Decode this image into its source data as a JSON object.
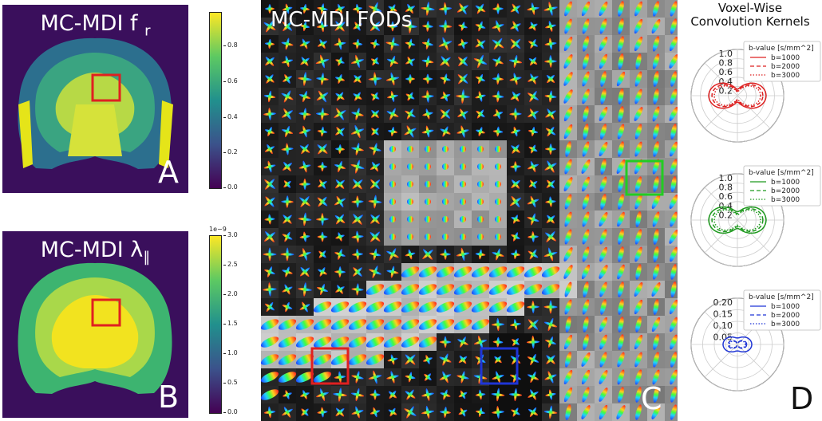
{
  "panel_a": {
    "title_main": "MC-MDI f",
    "title_sub": "r",
    "letter": "A",
    "colorbar_ticks": [
      "0.8",
      "0.6",
      "0.4",
      "0.2",
      "0.0"
    ]
  },
  "panel_b": {
    "title_main": "MC-MDI λ",
    "title_sub": "∥",
    "letter": "B",
    "colorbar_exponent": "1e−9",
    "colorbar_ticks": [
      "3.0",
      "2.5",
      "2.0",
      "1.5",
      "1.0",
      "0.5",
      "0.0"
    ]
  },
  "panel_c": {
    "title": "MC-MDI FODs",
    "letter": "C"
  },
  "panel_d": {
    "title_line1": "Voxel-Wise",
    "title_line2": "Convolution Kernels",
    "letter": "D"
  },
  "colors": {
    "red": "#dd2020",
    "green": "#1f9a1f",
    "blue": "#1f35d6",
    "viridis_low": "#440154",
    "viridis_high": "#fde725"
  },
  "chart_data": [
    {
      "type": "polar",
      "color": "#dd2020",
      "radial_ticks": [
        "1.0",
        "0.8",
        "0.6",
        "0.4",
        "0.2"
      ],
      "rmax": 1.0,
      "legend_title": "b-value [s/mm^2]",
      "series": [
        {
          "name": "b=1000",
          "style": "solid",
          "along_axis": 0.62,
          "perp_axis": 0.14
        },
        {
          "name": "b=2000",
          "style": "dashed",
          "along_axis": 0.55,
          "perp_axis": 0.1
        },
        {
          "name": "b=3000",
          "style": "dotted",
          "along_axis": 0.5,
          "perp_axis": 0.08
        }
      ]
    },
    {
      "type": "polar",
      "color": "#1f9a1f",
      "radial_ticks": [
        "1.0",
        "0.8",
        "0.6",
        "0.4",
        "0.2"
      ],
      "rmax": 1.0,
      "legend_title": "b-value [s/mm^2]",
      "series": [
        {
          "name": "b=1000",
          "style": "solid",
          "along_axis": 0.62,
          "perp_axis": 0.18
        },
        {
          "name": "b=2000",
          "style": "dashed",
          "along_axis": 0.55,
          "perp_axis": 0.14
        },
        {
          "name": "b=3000",
          "style": "dotted",
          "along_axis": 0.5,
          "perp_axis": 0.11
        }
      ]
    },
    {
      "type": "polar",
      "color": "#1f35d6",
      "radial_ticks": [
        "0.20",
        "0.15",
        "0.10",
        "0.05"
      ],
      "rmax": 0.2,
      "legend_title": "b-value [s/mm^2]",
      "series": [
        {
          "name": "b=1000",
          "style": "solid",
          "along_axis": 0.062,
          "perp_axis": 0.028
        },
        {
          "name": "b=2000",
          "style": "dashed",
          "along_axis": 0.04,
          "perp_axis": 0.006
        },
        {
          "name": "b=3000",
          "style": "dotted",
          "along_axis": 0.035,
          "perp_axis": 0.004
        }
      ]
    }
  ]
}
